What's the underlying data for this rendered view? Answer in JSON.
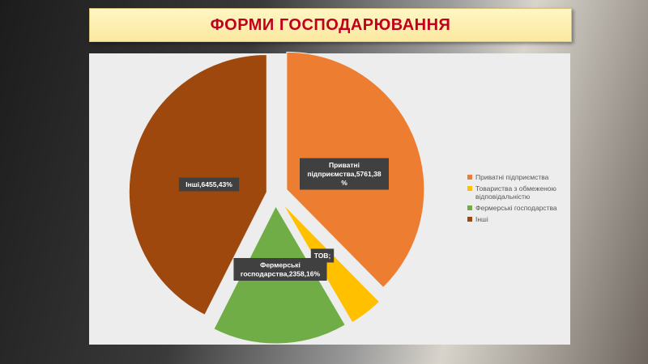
{
  "title": "ФОРМИ ГОСПОДАРЮВАННЯ",
  "chart_data": {
    "type": "pie",
    "exploded": true,
    "legend_position": "right",
    "categories": [
      "Приватні підприємства",
      "Товариства з обмеженою відповідальністю",
      "Фермерські господарства",
      "Інші"
    ],
    "values": [
      38,
      4,
      16,
      43
    ],
    "colors": [
      "#ed7d31",
      "#ffc000",
      "#70ad47",
      "#9e480e"
    ],
    "data_labels": [
      [
        "Приватні",
        "підприємства,5761,38",
        "%"
      ],
      [
        "ТОВ;"
      ],
      [
        "Фермерські",
        "господарства,2358,16%"
      ],
      [
        "Інші,6455,43%"
      ]
    ],
    "legend_lines": [
      [
        "Приватні підприємства"
      ],
      [
        "Товариства з обмеженою",
        "відповідальністю"
      ],
      [
        "Фермерські господарства"
      ],
      [
        "Інші"
      ]
    ]
  }
}
